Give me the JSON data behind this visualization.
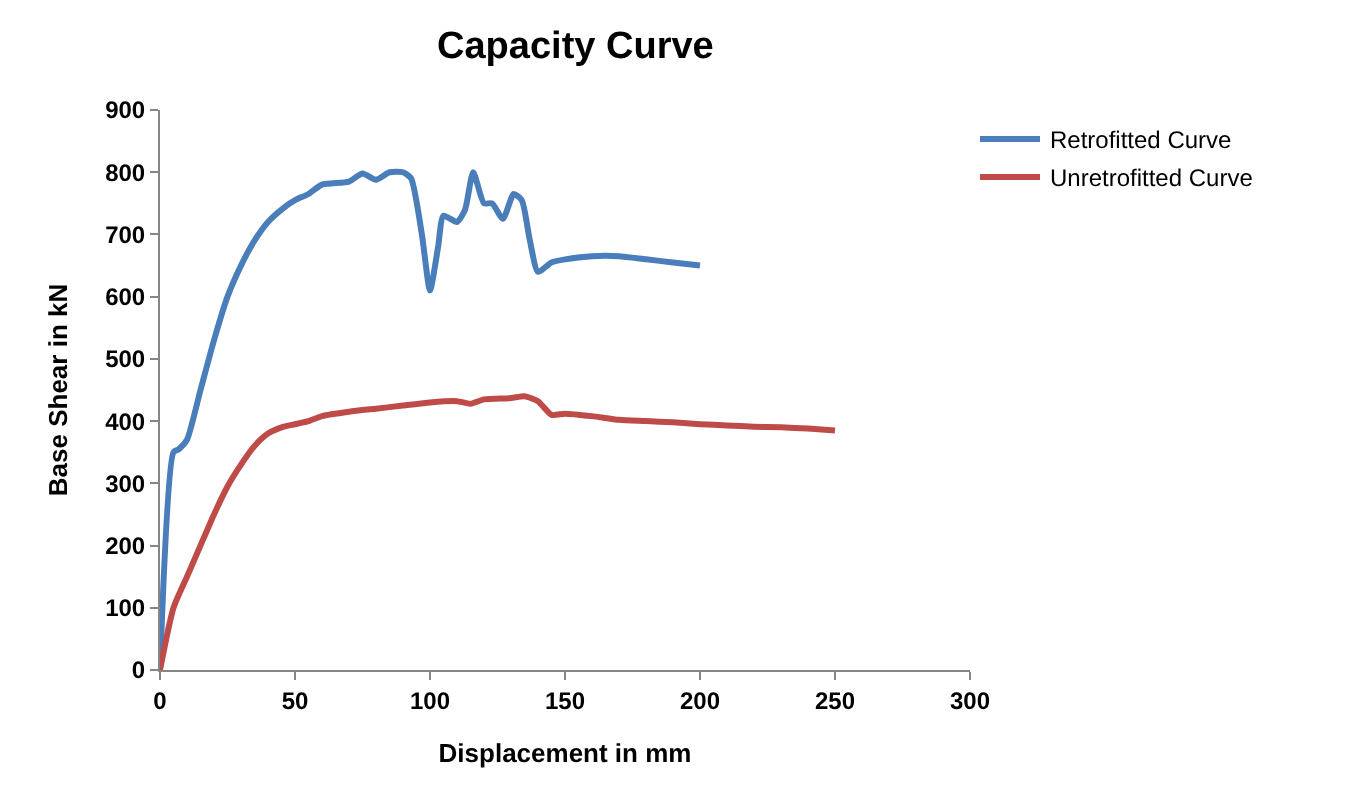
{
  "chart_data": {
    "type": "line",
    "title": "Capacity Curve",
    "xlabel": "Displacement in mm",
    "ylabel": "Base Shear in kN",
    "xlim": [
      0,
      300
    ],
    "xticks": [
      0,
      50,
      100,
      150,
      200,
      250,
      300
    ],
    "ylim": [
      0,
      900
    ],
    "yticks": [
      0,
      100,
      200,
      300,
      400,
      500,
      600,
      700,
      800,
      900
    ],
    "grid": false,
    "legend": "top right",
    "marker": "none",
    "line_style": "solid",
    "series": [
      {
        "name": "Retrofitted Curve",
        "color": "#4a7ebb",
        "x": [
          0,
          5,
          7,
          10,
          15,
          20,
          25,
          30,
          35,
          40,
          45,
          50,
          55,
          60,
          70,
          75,
          80,
          85,
          90,
          93,
          97,
          100,
          103,
          105,
          110,
          113,
          116,
          120,
          123,
          127,
          131,
          134,
          137,
          140,
          145,
          150,
          160,
          170,
          180,
          190,
          200
        ],
        "values": [
          0,
          350,
          355,
          370,
          450,
          530,
          600,
          650,
          690,
          720,
          740,
          755,
          765,
          780,
          785,
          798,
          788,
          800,
          800,
          790,
          700,
          610,
          680,
          730,
          720,
          740,
          800,
          750,
          750,
          725,
          765,
          755,
          690,
          640,
          655,
          660,
          665,
          665,
          660,
          655,
          650
        ]
      },
      {
        "name": "Unretrofitted Curve",
        "color": "#be4b48",
        "x": [
          0,
          5,
          10,
          15,
          20,
          25,
          30,
          35,
          40,
          45,
          50,
          55,
          60,
          70,
          80,
          90,
          100,
          110,
          115,
          120,
          130,
          135,
          140,
          145,
          150,
          160,
          170,
          180,
          190,
          200,
          210,
          220,
          230,
          240,
          250
        ],
        "values": [
          0,
          100,
          150,
          200,
          250,
          295,
          330,
          360,
          380,
          390,
          395,
          400,
          408,
          415,
          420,
          425,
          430,
          432,
          428,
          435,
          437,
          440,
          432,
          410,
          412,
          408,
          402,
          400,
          398,
          395,
          393,
          391,
          390,
          388,
          385
        ]
      }
    ]
  }
}
